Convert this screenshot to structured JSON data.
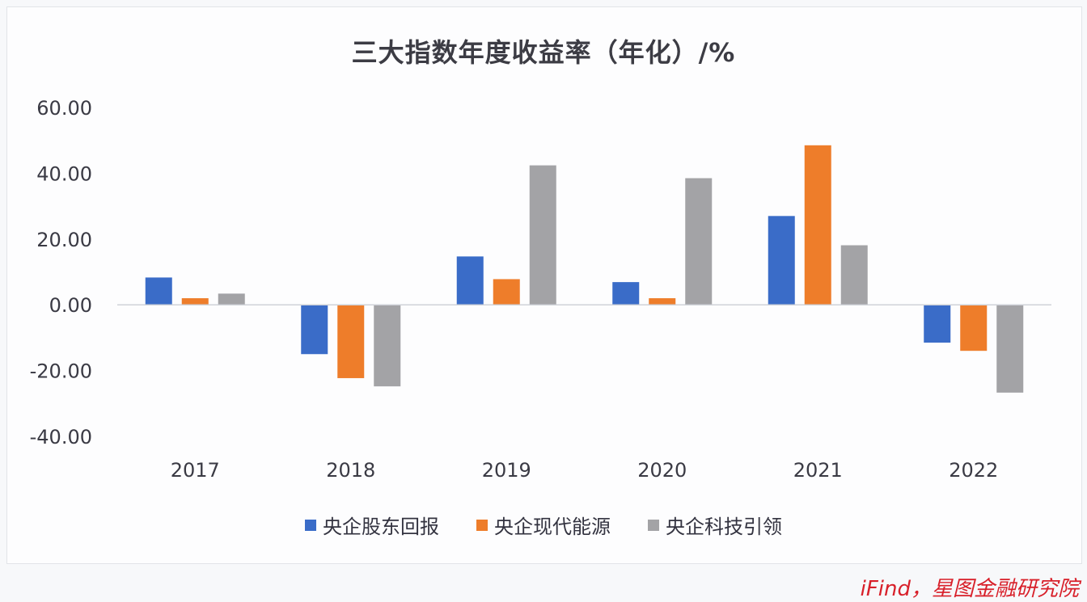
{
  "chart_data": {
    "type": "bar",
    "title": "三大指数年度收益率（年化）/%",
    "xlabel": "",
    "ylabel": "",
    "categories": [
      "2017",
      "2018",
      "2019",
      "2020",
      "2021",
      "2022"
    ],
    "ylim": [
      -40,
      60
    ],
    "yticks": [
      "60.00",
      "40.00",
      "20.00",
      "0.00",
      "-20.00",
      "-40.00"
    ],
    "ytick_values": [
      60,
      40,
      20,
      0,
      -20,
      -40
    ],
    "grid": false,
    "legend_position": "bottom",
    "series": [
      {
        "name": "央企股东回报",
        "color": "#3a6cc8",
        "values": [
          8.3,
          -15.0,
          14.7,
          6.9,
          27.0,
          -11.5
        ]
      },
      {
        "name": "央企现代能源",
        "color": "#ee7d2a",
        "values": [
          2.0,
          -22.3,
          7.8,
          2.0,
          48.5,
          -14.0
        ]
      },
      {
        "name": "央企科技引领",
        "color": "#a3a3a6",
        "values": [
          3.4,
          -24.8,
          42.4,
          38.5,
          18.1,
          -26.7
        ]
      }
    ]
  },
  "source": "iFind，星图金融研究院"
}
